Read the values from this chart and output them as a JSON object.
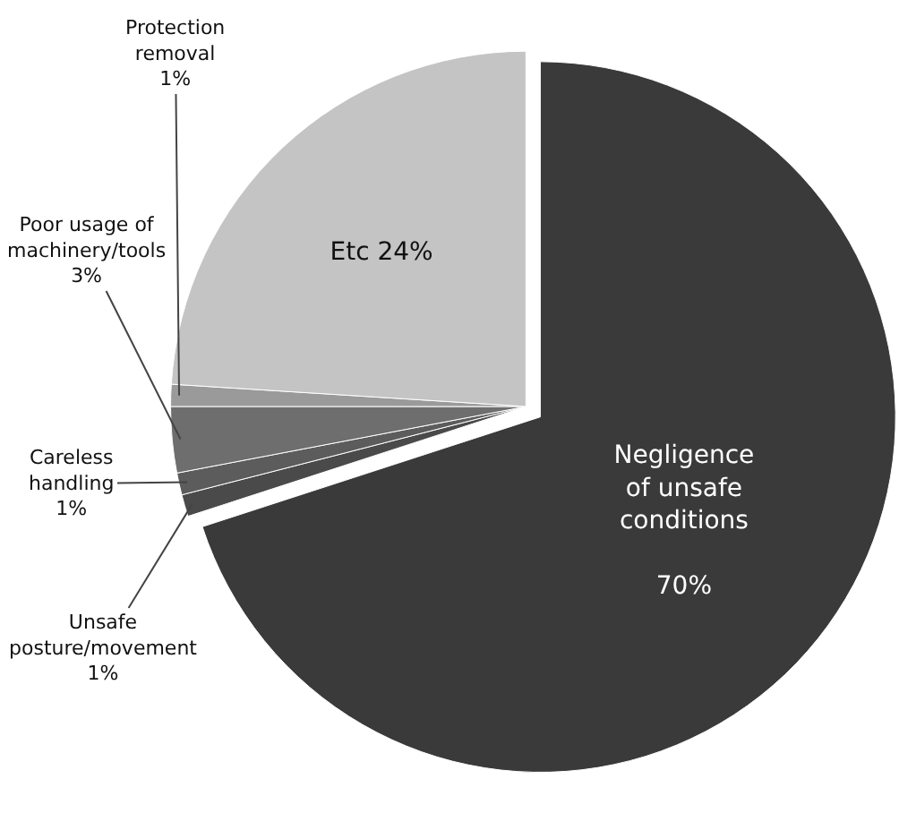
{
  "chart_data": {
    "type": "pie",
    "categories": [
      "Negligence of unsafe conditions",
      "Unsafe posture/movement",
      "Careless handling",
      "Poor usage of machinery/tools",
      "Protection removal",
      "Etc"
    ],
    "values": [
      70,
      1,
      1,
      3,
      1,
      24
    ],
    "value_labels": [
      "70%",
      "1%",
      "1%",
      "3%",
      "1%",
      "24%"
    ],
    "colors": [
      "#3a3a3a",
      "#4a4a4a",
      "#5c5c5c",
      "#6e6e6e",
      "#9a9a9a",
      "#c4c4c4"
    ]
  }
}
